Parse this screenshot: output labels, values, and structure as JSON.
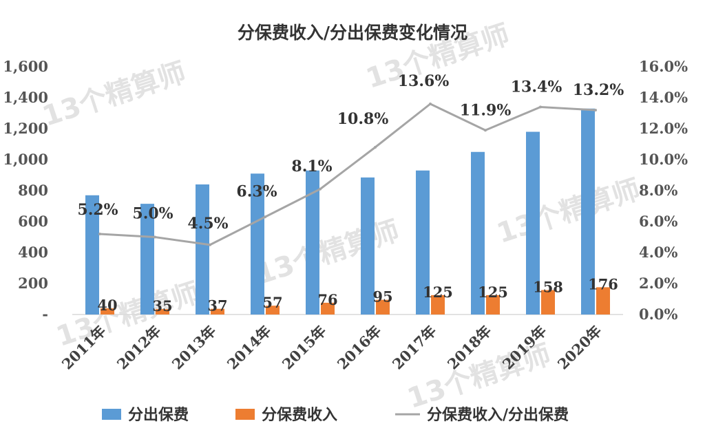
{
  "chart_data": {
    "type": "bar",
    "title": "分保费收入/分出保费变化情况",
    "categories": [
      "2011年",
      "2012年",
      "2013年",
      "2014年",
      "2015年",
      "2016年",
      "2017年",
      "2018年",
      "2019年",
      "2020年"
    ],
    "series": [
      {
        "name": "分出保费",
        "type": "bar",
        "axis": "left",
        "color": "#5b9bd5",
        "values": [
          770,
          715,
          840,
          910,
          930,
          885,
          930,
          1050,
          1180,
          1330
        ]
      },
      {
        "name": "分保费收入",
        "type": "bar",
        "axis": "left",
        "color": "#ed7d31",
        "values": [
          40,
          35,
          37,
          57,
          76,
          95,
          125,
          125,
          158,
          176
        ],
        "labels": [
          "40",
          "35",
          "37",
          "57",
          "76",
          "95",
          "125",
          "125",
          "158",
          "176"
        ]
      },
      {
        "name": "分保费收入/分出保费",
        "type": "line",
        "axis": "right",
        "color": "#a5a5a5",
        "values": [
          5.2,
          5.0,
          4.5,
          6.3,
          8.1,
          10.8,
          13.6,
          11.9,
          13.4,
          13.2
        ],
        "labels": [
          "5.2%",
          "5.0%",
          "4.5%",
          "6.3%",
          "8.1%",
          "10.8%",
          "13.6%",
          "11.9%",
          "13.4%",
          "13.2%"
        ]
      }
    ],
    "y_left": {
      "ylim": [
        0,
        1600
      ],
      "ticks": [
        "-",
        "200",
        "400",
        "600",
        "800",
        "1,000",
        "1,200",
        "1,400",
        "1,600"
      ]
    },
    "y_right": {
      "ylim": [
        0,
        16
      ],
      "ticks": [
        "0.0%",
        "2.0%",
        "4.0%",
        "6.0%",
        "8.0%",
        "10.0%",
        "12.0%",
        "14.0%",
        "16.0%"
      ]
    },
    "grid": false,
    "legend_position": "bottom"
  },
  "watermark": "13个精算师"
}
